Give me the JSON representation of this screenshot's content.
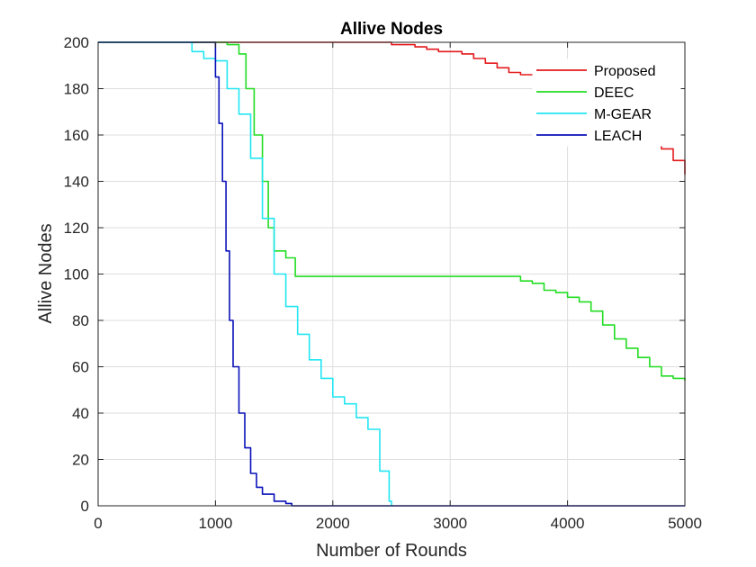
{
  "chart_data": {
    "type": "line",
    "title": "Allive Nodes",
    "xlabel": "Number of Rounds",
    "ylabel": "Allive Nodes",
    "xlim": [
      0,
      5000
    ],
    "ylim": [
      0,
      200
    ],
    "xticks": [
      0,
      1000,
      2000,
      3000,
      4000,
      5000
    ],
    "yticks": [
      0,
      20,
      40,
      60,
      80,
      100,
      120,
      140,
      160,
      180,
      200
    ],
    "grid": true,
    "legend_position": "top-right",
    "series": [
      {
        "name": "Proposed",
        "color": "#e31a1c",
        "points": [
          [
            0,
            200
          ],
          [
            2300,
            200
          ],
          [
            2500,
            199
          ],
          [
            2700,
            198
          ],
          [
            2800,
            197
          ],
          [
            2900,
            196
          ],
          [
            3100,
            195
          ],
          [
            3200,
            193
          ],
          [
            3300,
            191
          ],
          [
            3400,
            189
          ],
          [
            3500,
            187
          ],
          [
            3600,
            186
          ],
          [
            3800,
            185
          ],
          [
            4200,
            183
          ],
          [
            4400,
            179
          ],
          [
            4600,
            170
          ],
          [
            4700,
            162
          ],
          [
            4800,
            154
          ],
          [
            4900,
            149
          ],
          [
            5000,
            143
          ]
        ]
      },
      {
        "name": "DEEC",
        "color": "#22dd22",
        "points": [
          [
            0,
            200
          ],
          [
            1000,
            200
          ],
          [
            1100,
            199
          ],
          [
            1200,
            195
          ],
          [
            1260,
            180
          ],
          [
            1330,
            160
          ],
          [
            1400,
            140
          ],
          [
            1450,
            120
          ],
          [
            1500,
            110
          ],
          [
            1600,
            107
          ],
          [
            1680,
            99
          ],
          [
            3500,
            99
          ],
          [
            3600,
            97
          ],
          [
            3700,
            96
          ],
          [
            3800,
            93
          ],
          [
            3900,
            92
          ],
          [
            4000,
            90
          ],
          [
            4100,
            88
          ],
          [
            4200,
            84
          ],
          [
            4300,
            78
          ],
          [
            4400,
            72
          ],
          [
            4500,
            68
          ],
          [
            4600,
            64
          ],
          [
            4700,
            60
          ],
          [
            4800,
            56
          ],
          [
            4900,
            55
          ],
          [
            5000,
            54
          ]
        ]
      },
      {
        "name": "M-GEAR",
        "color": "#22e6f2",
        "points": [
          [
            0,
            200
          ],
          [
            700,
            200
          ],
          [
            800,
            196
          ],
          [
            900,
            193
          ],
          [
            1000,
            192
          ],
          [
            1100,
            180
          ],
          [
            1200,
            169
          ],
          [
            1300,
            150
          ],
          [
            1400,
            124
          ],
          [
            1500,
            100
          ],
          [
            1600,
            86
          ],
          [
            1700,
            74
          ],
          [
            1800,
            63
          ],
          [
            1900,
            55
          ],
          [
            2000,
            47
          ],
          [
            2100,
            44
          ],
          [
            2200,
            38
          ],
          [
            2300,
            33
          ],
          [
            2400,
            15
          ],
          [
            2480,
            2
          ],
          [
            2500,
            0
          ]
        ]
      },
      {
        "name": "LEACH",
        "color": "#0a12b8",
        "points": [
          [
            0,
            200
          ],
          [
            950,
            200
          ],
          [
            1000,
            185
          ],
          [
            1030,
            165
          ],
          [
            1060,
            140
          ],
          [
            1090,
            110
          ],
          [
            1120,
            80
          ],
          [
            1150,
            60
          ],
          [
            1200,
            40
          ],
          [
            1250,
            25
          ],
          [
            1300,
            14
          ],
          [
            1350,
            8
          ],
          [
            1400,
            5
          ],
          [
            1500,
            2
          ],
          [
            1600,
            1
          ],
          [
            1650,
            0
          ],
          [
            5000,
            0
          ]
        ]
      }
    ]
  }
}
